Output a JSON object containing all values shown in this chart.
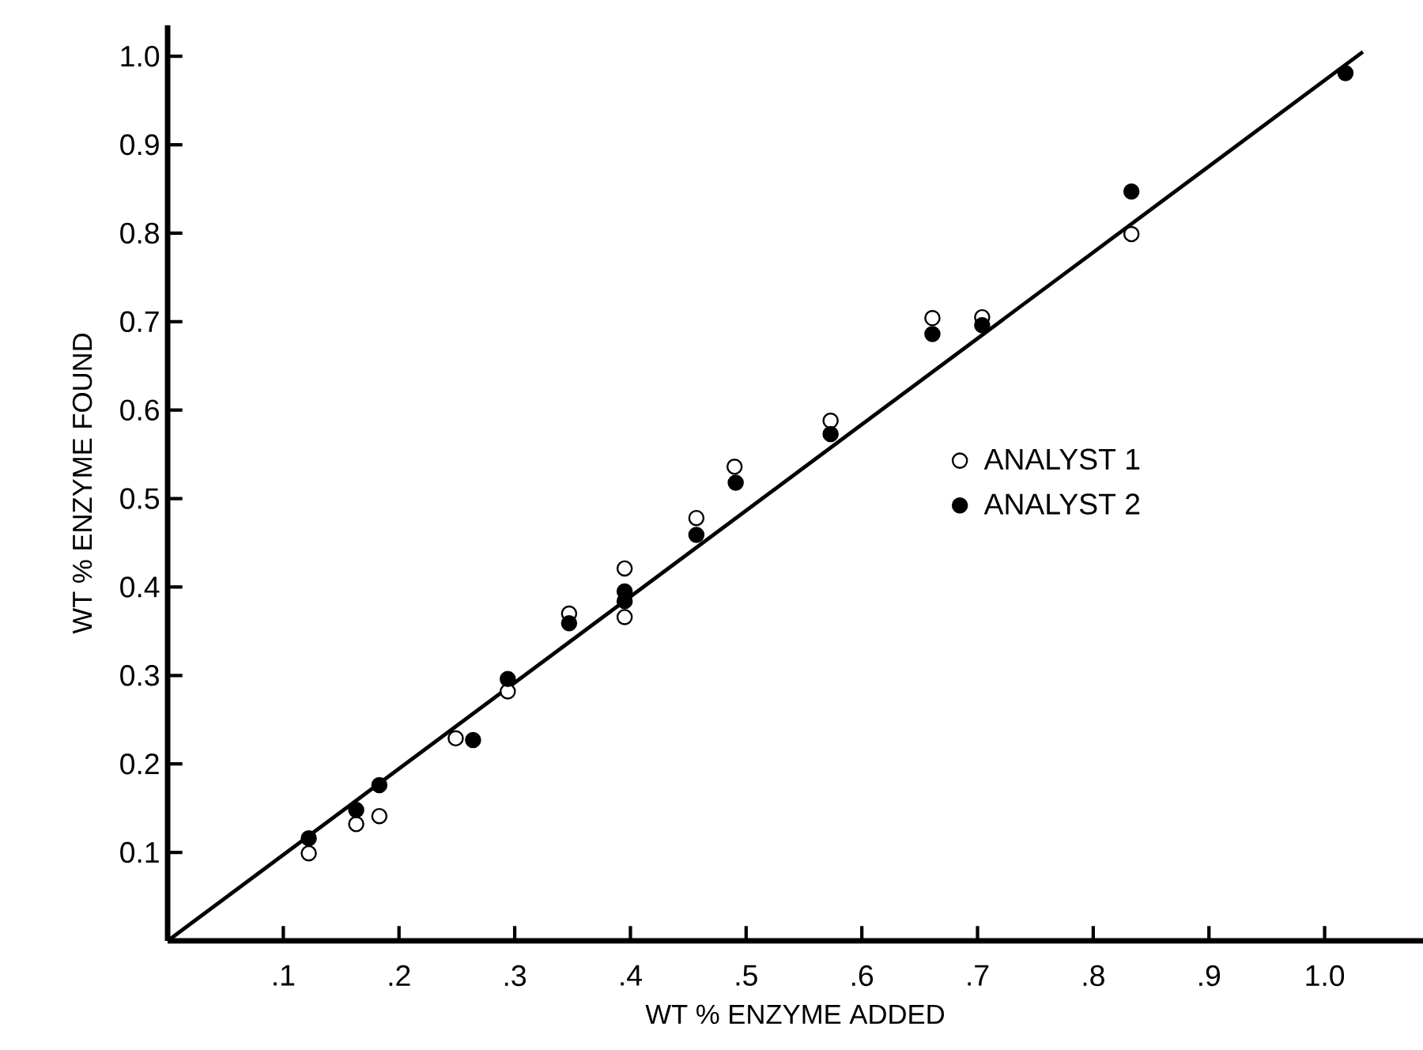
{
  "chart_data": {
    "type": "scatter",
    "xlabel": "WT   % ENZYME ADDED",
    "ylabel": "WT   % ENZYME FOUND",
    "xlim": [
      0,
      1.085
    ],
    "ylim": [
      0,
      1.035
    ],
    "xticks": [
      {
        "value": 0.1,
        "label": ".1"
      },
      {
        "value": 0.2,
        "label": ".2"
      },
      {
        "value": 0.3,
        "label": ".3"
      },
      {
        "value": 0.4,
        "label": ".4"
      },
      {
        "value": 0.5,
        "label": ".5"
      },
      {
        "value": 0.6,
        "label": ".6"
      },
      {
        "value": 0.7,
        "label": ".7"
      },
      {
        "value": 0.8,
        "label": ".8"
      },
      {
        "value": 0.9,
        "label": ".9"
      },
      {
        "value": 1.0,
        "label": "1.0"
      }
    ],
    "yticks": [
      {
        "value": 0.1,
        "label": "0.1"
      },
      {
        "value": 0.2,
        "label": "0.2"
      },
      {
        "value": 0.3,
        "label": "0.3"
      },
      {
        "value": 0.4,
        "label": "0.4"
      },
      {
        "value": 0.5,
        "label": "0.5"
      },
      {
        "value": 0.6,
        "label": "0.6"
      },
      {
        "value": 0.7,
        "label": "0.7"
      },
      {
        "value": 0.8,
        "label": "0.8"
      },
      {
        "value": 0.9,
        "label": "0.9"
      },
      {
        "value": 1.0,
        "label": "1.0"
      }
    ],
    "marker": "circle",
    "legend": "right",
    "grid": false,
    "series": [
      {
        "name": "ANALYST  1",
        "color": "#000000",
        "x": [
          0.122,
          0.163,
          0.183,
          0.249,
          0.294,
          0.347,
          0.395,
          0.395,
          0.457,
          0.49,
          0.573,
          0.661,
          0.704,
          0.833
        ],
        "values": [
          0.099,
          0.132,
          0.141,
          0.229,
          0.282,
          0.37,
          0.421,
          0.366,
          0.478,
          0.536,
          0.588,
          0.704,
          0.705,
          0.799
        ]
      },
      {
        "name": "ANALYST  2",
        "color": "#000000",
        "x": [
          0.122,
          0.163,
          0.183,
          0.264,
          0.294,
          0.347,
          0.395,
          0.395,
          0.457,
          0.491,
          0.573,
          0.661,
          0.704,
          0.833,
          1.018
        ],
        "values": [
          0.116,
          0.148,
          0.176,
          0.227,
          0.296,
          0.359,
          0.395,
          0.384,
          0.459,
          0.518,
          0.573,
          0.686,
          0.696,
          0.847,
          0.981
        ]
      },
      {
        "type": "line",
        "color": "#000000",
        "line_style": "solid",
        "marker": "none",
        "x": [
          0,
          1.033
        ],
        "values": [
          0,
          1.005
        ]
      }
    ]
  }
}
